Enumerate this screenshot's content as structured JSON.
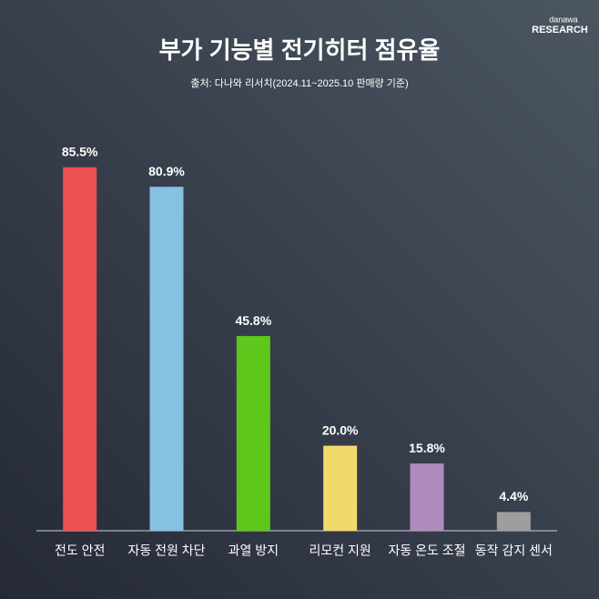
{
  "brand": {
    "name": "danawa",
    "sub": "RESEARCH"
  },
  "chart_data": {
    "type": "bar",
    "title": "부가 기능별 전기히터 점유율",
    "subtitle": "출처: 다나와 리서치(2024.11~2025.10 판매량 기준)",
    "categories": [
      "전도 안전",
      "자동 전원 차단",
      "과열 방지",
      "리모컨 지원",
      "자동 온도 조절",
      "동작 감지 센서"
    ],
    "values": [
      85.5,
      80.9,
      45.8,
      20.0,
      15.8,
      4.4
    ],
    "value_labels": [
      "85.5%",
      "80.9%",
      "45.8%",
      "20.0%",
      "15.8%",
      "4.4%"
    ],
    "colors": [
      "#ef5050",
      "#86c1e3",
      "#5fc61c",
      "#f3d96b",
      "#b08cbd",
      "#9e9e9e"
    ]
  }
}
